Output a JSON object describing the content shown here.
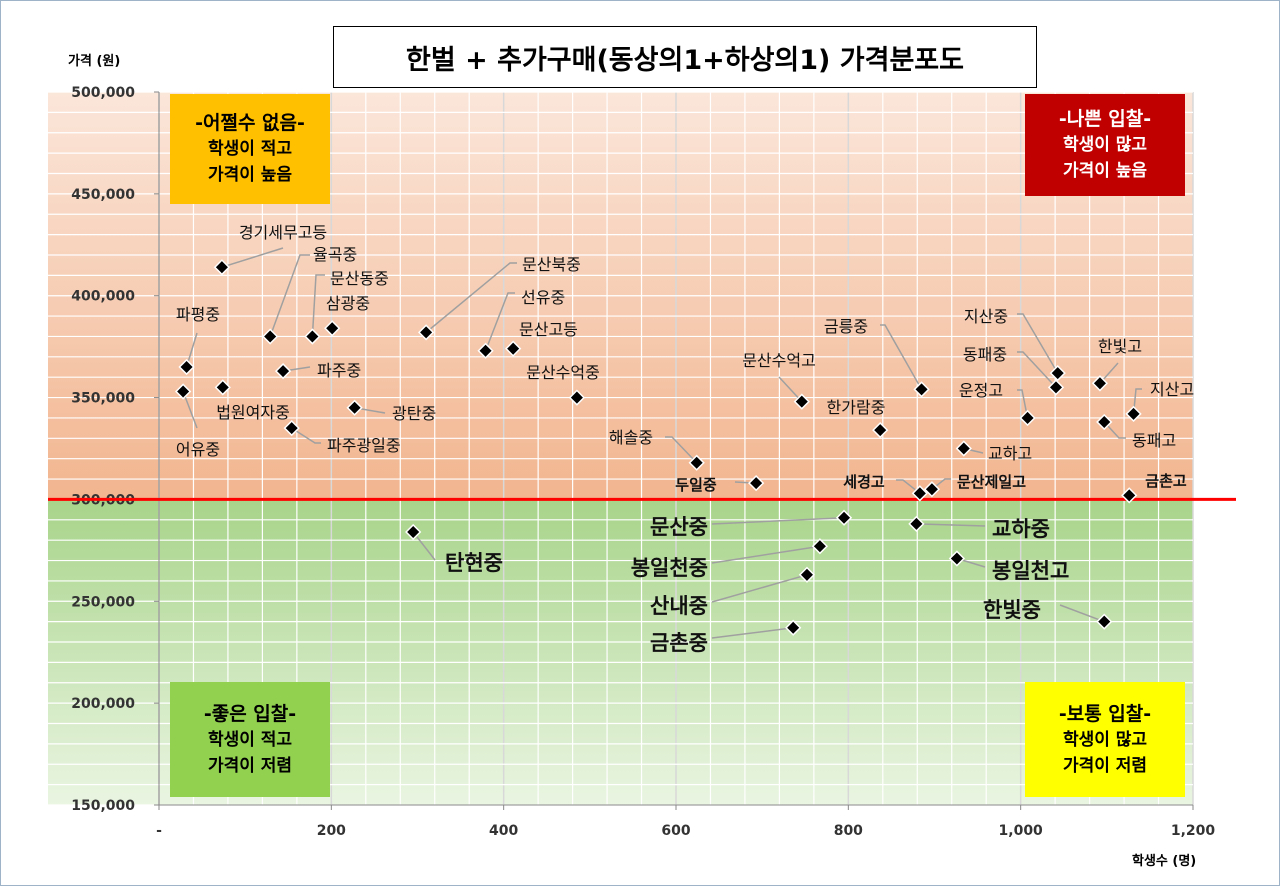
{
  "chart_data": {
    "type": "scatter",
    "title": "한벌 + 추가구매(동상의1+하상의1) 가격분포도",
    "xlabel": "학생수 (명)",
    "ylabel": "가격 (원)",
    "xlim": [
      0,
      1200
    ],
    "ylim": [
      150000,
      500000
    ],
    "x_ticks": [
      "-",
      "200",
      "400",
      "600",
      "800",
      "1,000",
      "1,200"
    ],
    "y_ticks": [
      "150,000",
      "200,000",
      "250,000",
      "300,000",
      "350,000",
      "400,000",
      "450,000",
      "500,000"
    ],
    "grid": true,
    "reference_line": {
      "y": 300000,
      "color": "#FF0000"
    },
    "points": [
      {
        "name": "경기세무고등",
        "x": 73,
        "y": 414000
      },
      {
        "name": "율곡중",
        "x": 129,
        "y": 380000
      },
      {
        "name": "문산동중",
        "x": 178,
        "y": 380000
      },
      {
        "name": "삼광중",
        "x": 201,
        "y": 384000
      },
      {
        "name": "파평중",
        "x": 32,
        "y": 365000
      },
      {
        "name": "어유중",
        "x": 28,
        "y": 353000
      },
      {
        "name": "법원여자중",
        "x": 74,
        "y": 355000
      },
      {
        "name": "파주중",
        "x": 144,
        "y": 363000
      },
      {
        "name": "파주광일중",
        "x": 154,
        "y": 335000
      },
      {
        "name": "광탄중",
        "x": 227,
        "y": 345000
      },
      {
        "name": "문산북중",
        "x": 310,
        "y": 382000
      },
      {
        "name": "선유중",
        "x": 379,
        "y": 373000
      },
      {
        "name": "문산고등",
        "x": 411,
        "y": 374000
      },
      {
        "name": "문산수억중",
        "x": 485,
        "y": 350000
      },
      {
        "name": "해솔중",
        "x": 624,
        "y": 318000
      },
      {
        "name": "두일중",
        "x": 693,
        "y": 308000
      },
      {
        "name": "문산수억고",
        "x": 746,
        "y": 348000
      },
      {
        "name": "한가람중",
        "x": 837,
        "y": 334000
      },
      {
        "name": "금릉중",
        "x": 885,
        "y": 354000
      },
      {
        "name": "지산중",
        "x": 1043,
        "y": 362000
      },
      {
        "name": "동패중",
        "x": 1041,
        "y": 355000
      },
      {
        "name": "운정고",
        "x": 1008,
        "y": 340000
      },
      {
        "name": "교하고",
        "x": 934,
        "y": 325000
      },
      {
        "name": "한빛고",
        "x": 1092,
        "y": 357000
      },
      {
        "name": "지산고",
        "x": 1131,
        "y": 342000
      },
      {
        "name": "동패고",
        "x": 1097,
        "y": 338000
      },
      {
        "name": "세경고",
        "x": 883,
        "y": 303000
      },
      {
        "name": "문산제일고",
        "x": 897,
        "y": 305000
      },
      {
        "name": "금촌고",
        "x": 1126,
        "y": 302000
      },
      {
        "name": "탄현중",
        "x": 295,
        "y": 284000
      },
      {
        "name": "문산중",
        "x": 795,
        "y": 291000
      },
      {
        "name": "교하중",
        "x": 879,
        "y": 288000
      },
      {
        "name": "봉일천중",
        "x": 767,
        "y": 277000
      },
      {
        "name": "봉일천고",
        "x": 926,
        "y": 271000
      },
      {
        "name": "산내중",
        "x": 752,
        "y": 263000
      },
      {
        "name": "한빛중",
        "x": 1097,
        "y": 240000
      },
      {
        "name": "금촌중",
        "x": 736,
        "y": 237000
      }
    ],
    "annotations": [
      {
        "id": "top_left",
        "heading": "-어쩔수 없음-",
        "lines": [
          "학생이 적고",
          "가격이 높음"
        ],
        "bg": "#FFC000",
        "color": "#000000"
      },
      {
        "id": "top_right",
        "heading": "-나쁜 입찰-",
        "lines": [
          "학생이 많고",
          "가격이 높음"
        ],
        "bg": "#C00000",
        "color": "#FFFFFF"
      },
      {
        "id": "bottom_left",
        "heading": "-좋은 입찰-",
        "lines": [
          "학생이 적고",
          "가격이 저렴"
        ],
        "bg": "#92D050",
        "color": "#000000"
      },
      {
        "id": "bottom_right",
        "heading": "-보통 입찰-",
        "lines": [
          "학생이 많고",
          "가격이 저렴"
        ],
        "bg": "#FFFF00",
        "color": "#000000"
      }
    ]
  }
}
